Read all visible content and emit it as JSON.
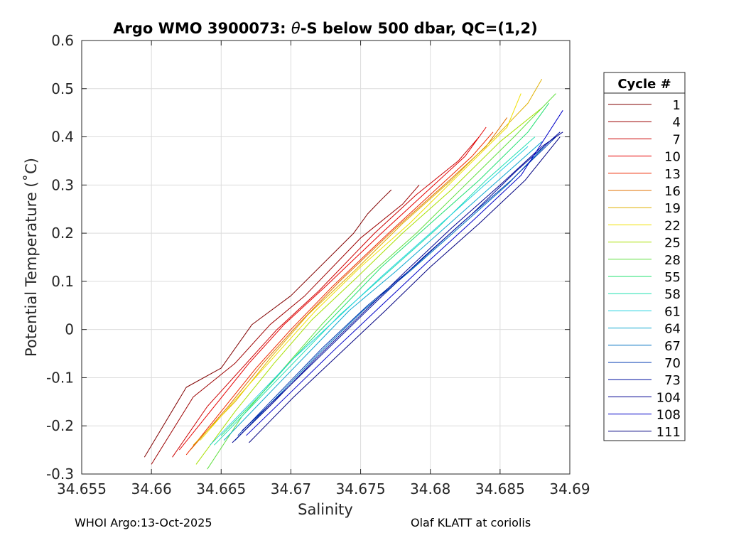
{
  "chart_data": {
    "type": "line",
    "title_prefix": "Argo WMO 3900073: ",
    "title_symbol": "θ",
    "title_suffix": "-S below 500 dbar,  QC=(1,2)",
    "xlabel": "Salinity",
    "ylabel": "Potential Temperature (˚C)",
    "xlim": [
      34.655,
      34.69
    ],
    "ylim": [
      -0.3,
      0.6
    ],
    "xticks": [
      34.655,
      34.66,
      34.665,
      34.67,
      34.675,
      34.68,
      34.685,
      34.69
    ],
    "xtick_labels": [
      "34.655",
      "34.66",
      "34.665",
      "34.67",
      "34.675",
      "34.68",
      "34.685",
      "34.69"
    ],
    "yticks": [
      -0.3,
      -0.2,
      -0.1,
      0,
      0.1,
      0.2,
      0.3,
      0.4,
      0.5,
      0.6
    ],
    "ytick_labels": [
      "-0.3",
      "-0.2",
      "-0.1",
      "0",
      "0.1",
      "0.2",
      "0.3",
      "0.4",
      "0.5",
      "0.6"
    ],
    "grid": true,
    "legend_title": "Cycle #",
    "legend_position": "outside-right",
    "series": [
      {
        "name": "1",
        "color": "#800000",
        "points": [
          [
            34.6595,
            -0.265
          ],
          [
            34.6625,
            -0.12
          ],
          [
            34.665,
            -0.08
          ],
          [
            34.6672,
            0.01
          ],
          [
            34.67,
            0.07
          ],
          [
            34.6745,
            0.2
          ],
          [
            34.6755,
            0.24
          ],
          [
            34.6765,
            0.27
          ],
          [
            34.6772,
            0.29
          ]
        ]
      },
      {
        "name": "4",
        "color": "#9c0000",
        "points": [
          [
            34.66,
            -0.28
          ],
          [
            34.663,
            -0.14
          ],
          [
            34.666,
            -0.07
          ],
          [
            34.6685,
            0.01
          ],
          [
            34.671,
            0.07
          ],
          [
            34.675,
            0.19
          ],
          [
            34.678,
            0.26
          ],
          [
            34.6792,
            0.3
          ]
        ]
      },
      {
        "name": "7",
        "color": "#cc0000",
        "points": [
          [
            34.6615,
            -0.265
          ],
          [
            34.664,
            -0.16
          ],
          [
            34.6665,
            -0.08
          ],
          [
            34.669,
            0.0
          ],
          [
            34.672,
            0.08
          ],
          [
            34.676,
            0.2
          ],
          [
            34.679,
            0.28
          ],
          [
            34.682,
            0.35
          ],
          [
            34.6835,
            0.4
          ]
        ]
      },
      {
        "name": "10",
        "color": "#e60000",
        "points": [
          [
            34.662,
            -0.25
          ],
          [
            34.6645,
            -0.16
          ],
          [
            34.667,
            -0.07
          ],
          [
            34.6695,
            0.01
          ],
          [
            34.6725,
            0.09
          ],
          [
            34.6765,
            0.2
          ],
          [
            34.6795,
            0.28
          ],
          [
            34.6825,
            0.36
          ],
          [
            34.684,
            0.42
          ]
        ]
      },
      {
        "name": "13",
        "color": "#f02800",
        "points": [
          [
            34.6625,
            -0.26
          ],
          [
            34.665,
            -0.17
          ],
          [
            34.6675,
            -0.08
          ],
          [
            34.67,
            0.0
          ],
          [
            34.673,
            0.09
          ],
          [
            34.677,
            0.2
          ],
          [
            34.68,
            0.28
          ],
          [
            34.683,
            0.36
          ],
          [
            34.6845,
            0.41
          ]
        ]
      },
      {
        "name": "16",
        "color": "#e07000",
        "points": [
          [
            34.6628,
            -0.25
          ],
          [
            34.6655,
            -0.16
          ],
          [
            34.668,
            -0.07
          ],
          [
            34.6705,
            0.01
          ],
          [
            34.6735,
            0.1
          ],
          [
            34.6775,
            0.21
          ],
          [
            34.681,
            0.3
          ],
          [
            34.684,
            0.38
          ],
          [
            34.6855,
            0.44
          ]
        ]
      },
      {
        "name": "19",
        "color": "#e0b000",
        "points": [
          [
            34.663,
            -0.24
          ],
          [
            34.666,
            -0.15
          ],
          [
            34.6685,
            -0.06
          ],
          [
            34.6712,
            0.03
          ],
          [
            34.6745,
            0.12
          ],
          [
            34.678,
            0.22
          ],
          [
            34.6815,
            0.31
          ],
          [
            34.685,
            0.41
          ],
          [
            34.687,
            0.47
          ],
          [
            34.688,
            0.52
          ]
        ]
      },
      {
        "name": "22",
        "color": "#f0e000",
        "points": [
          [
            34.6635,
            -0.23
          ],
          [
            34.6662,
            -0.14
          ],
          [
            34.669,
            -0.05
          ],
          [
            34.6718,
            0.04
          ],
          [
            34.675,
            0.13
          ],
          [
            34.6785,
            0.22
          ],
          [
            34.682,
            0.32
          ],
          [
            34.6855,
            0.42
          ],
          [
            34.6865,
            0.49
          ]
        ]
      },
      {
        "name": "25",
        "color": "#a8e000",
        "points": [
          [
            34.6632,
            -0.28
          ],
          [
            34.666,
            -0.17
          ],
          [
            34.6688,
            -0.07
          ],
          [
            34.6715,
            0.02
          ],
          [
            34.6748,
            0.11
          ],
          [
            34.678,
            0.2
          ],
          [
            34.6815,
            0.29
          ],
          [
            34.685,
            0.39
          ],
          [
            34.688,
            0.46
          ]
        ]
      },
      {
        "name": "28",
        "color": "#60e040",
        "points": [
          [
            34.664,
            -0.29
          ],
          [
            34.6665,
            -0.18
          ],
          [
            34.6695,
            -0.08
          ],
          [
            34.6722,
            0.01
          ],
          [
            34.6755,
            0.11
          ],
          [
            34.679,
            0.2
          ],
          [
            34.6825,
            0.3
          ],
          [
            34.686,
            0.4
          ],
          [
            34.689,
            0.49
          ]
        ]
      },
      {
        "name": "55",
        "color": "#20e070",
        "points": [
          [
            34.665,
            -0.22
          ],
          [
            34.668,
            -0.13
          ],
          [
            34.6705,
            -0.05
          ],
          [
            34.6735,
            0.04
          ],
          [
            34.6765,
            0.13
          ],
          [
            34.68,
            0.22
          ],
          [
            34.6835,
            0.31
          ],
          [
            34.687,
            0.41
          ],
          [
            34.6885,
            0.47
          ]
        ]
      },
      {
        "name": "58",
        "color": "#20e0b0",
        "points": [
          [
            34.6645,
            -0.24
          ],
          [
            34.6675,
            -0.15
          ],
          [
            34.6705,
            -0.06
          ],
          [
            34.6735,
            0.03
          ],
          [
            34.677,
            0.12
          ],
          [
            34.6805,
            0.21
          ],
          [
            34.684,
            0.31
          ],
          [
            34.6875,
            0.4
          ]
        ]
      },
      {
        "name": "61",
        "color": "#20d0e0",
        "points": [
          [
            34.6642,
            -0.24
          ],
          [
            34.6672,
            -0.15
          ],
          [
            34.6702,
            -0.06
          ],
          [
            34.6732,
            0.02
          ],
          [
            34.6765,
            0.11
          ],
          [
            34.68,
            0.2
          ],
          [
            34.6835,
            0.29
          ],
          [
            34.687,
            0.38
          ]
        ]
      },
      {
        "name": "64",
        "color": "#10a8d0",
        "points": [
          [
            34.6652,
            -0.23
          ],
          [
            34.6682,
            -0.14
          ],
          [
            34.6712,
            -0.05
          ],
          [
            34.6742,
            0.04
          ],
          [
            34.6775,
            0.12
          ],
          [
            34.681,
            0.21
          ],
          [
            34.6845,
            0.3
          ],
          [
            34.688,
            0.39
          ]
        ]
      },
      {
        "name": "67",
        "color": "#0070c0",
        "points": [
          [
            34.666,
            -0.23
          ],
          [
            34.669,
            -0.14
          ],
          [
            34.672,
            -0.05
          ],
          [
            34.6752,
            0.04
          ],
          [
            34.6785,
            0.12
          ],
          [
            34.682,
            0.21
          ],
          [
            34.6855,
            0.3
          ],
          [
            34.6885,
            0.39
          ]
        ]
      },
      {
        "name": "70",
        "color": "#0038b0",
        "points": [
          [
            34.6662,
            -0.22
          ],
          [
            34.6692,
            -0.13
          ],
          [
            34.6722,
            -0.04
          ],
          [
            34.6755,
            0.05
          ],
          [
            34.6788,
            0.13
          ],
          [
            34.6822,
            0.22
          ],
          [
            34.6858,
            0.31
          ],
          [
            34.689,
            0.4
          ]
        ]
      },
      {
        "name": "73",
        "color": "#0010a0",
        "points": [
          [
            34.6665,
            -0.21
          ],
          [
            34.6698,
            -0.12
          ],
          [
            34.673,
            -0.03
          ],
          [
            34.6762,
            0.06
          ],
          [
            34.6795,
            0.15
          ],
          [
            34.683,
            0.24
          ],
          [
            34.6862,
            0.33
          ],
          [
            34.6893,
            0.41
          ]
        ]
      },
      {
        "name": "104",
        "color": "#000090",
        "points": [
          [
            34.6658,
            -0.235
          ],
          [
            34.6688,
            -0.15
          ],
          [
            34.6718,
            -0.06
          ],
          [
            34.675,
            0.03
          ],
          [
            34.6782,
            0.12
          ],
          [
            34.6815,
            0.21
          ],
          [
            34.685,
            0.3
          ],
          [
            34.688,
            0.38
          ],
          [
            34.6895,
            0.41
          ]
        ]
      },
      {
        "name": "108",
        "color": "#0000c8",
        "points": [
          [
            34.6668,
            -0.22
          ],
          [
            34.67,
            -0.13
          ],
          [
            34.6732,
            -0.04
          ],
          [
            34.6765,
            0.05
          ],
          [
            34.6798,
            0.14
          ],
          [
            34.6832,
            0.23
          ],
          [
            34.6865,
            0.32
          ],
          [
            34.6895,
            0.455
          ]
        ]
      },
      {
        "name": "111",
        "color": "#000080",
        "points": [
          [
            34.667,
            -0.235
          ],
          [
            34.6702,
            -0.14
          ],
          [
            34.6735,
            -0.05
          ],
          [
            34.6768,
            0.04
          ],
          [
            34.68,
            0.13
          ],
          [
            34.6835,
            0.22
          ],
          [
            34.6868,
            0.31
          ],
          [
            34.6893,
            0.4
          ]
        ]
      }
    ]
  },
  "footer": {
    "left": "WHOI Argo:13-Oct-2025",
    "right": "Olaf KLATT at coriolis"
  }
}
